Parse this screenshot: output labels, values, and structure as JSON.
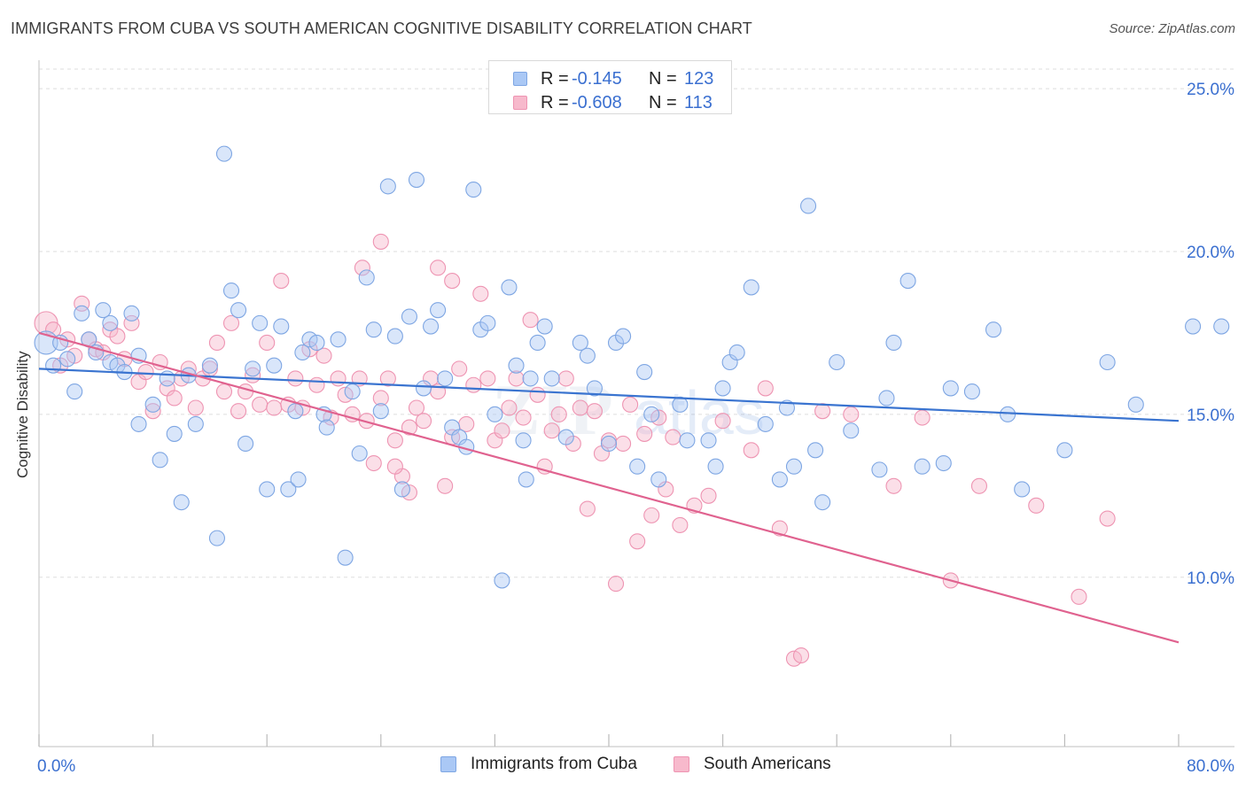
{
  "header": {
    "title": "IMMIGRANTS FROM CUBA VS SOUTH AMERICAN COGNITIVE DISABILITY CORRELATION CHART",
    "source": "Source: ZipAtlas.com"
  },
  "legend_top": {
    "rows": [
      {
        "r_label": "R =",
        "r_value": "-0.145",
        "n_label": "N =",
        "n_value": "123",
        "color": "#aac8f5"
      },
      {
        "r_label": "R =",
        "r_value": "-0.608",
        "n_label": "N =",
        "n_value": "113",
        "color": "#f7b9cc"
      }
    ]
  },
  "legend_bottom": {
    "items": [
      {
        "label": "Immigrants from Cuba",
        "color": "#aac8f5"
      },
      {
        "label": "South Americans",
        "color": "#f7b9cc"
      }
    ]
  },
  "watermark": {
    "zip": "ZIP",
    "atlas": "atlas"
  },
  "colors": {
    "cuba": "#3a74d0",
    "cuba_fill": "#aac8f5",
    "south": "#e0628f",
    "south_fill": "#f7b9cc",
    "axis_label": "#3a6fd0",
    "grid": "#dddddd"
  },
  "chart_data": {
    "type": "scatter",
    "title": "IMMIGRANTS FROM CUBA VS SOUTH AMERICAN COGNITIVE DISABILITY CORRELATION CHART",
    "xlabel": "",
    "ylabel": "Cognitive Disability",
    "xlim": [
      0,
      80
    ],
    "ylim": [
      4.8,
      25.6
    ],
    "x_tick_labels": [
      "0.0%",
      "80.0%"
    ],
    "y_ticks": [
      10,
      15,
      20,
      25
    ],
    "y_tick_labels": [
      "10.0%",
      "15.0%",
      "20.0%",
      "25.0%"
    ],
    "grid": "horizontal dashed",
    "legend_position": "top-center",
    "series": [
      {
        "name": "Immigrants from Cuba",
        "r": -0.145,
        "n": 123,
        "trend": {
          "x": [
            0,
            80
          ],
          "y": [
            16.4,
            14.8
          ]
        },
        "points": [
          [
            0.5,
            17.2
          ],
          [
            1,
            16.5
          ],
          [
            1.5,
            17.2
          ],
          [
            2,
            16.7
          ],
          [
            2.5,
            15.7
          ],
          [
            3,
            18.1
          ],
          [
            3.5,
            17.3
          ],
          [
            4,
            16.9
          ],
          [
            4.5,
            18.2
          ],
          [
            5,
            17.8
          ],
          [
            5,
            16.6
          ],
          [
            5.5,
            16.5
          ],
          [
            6,
            16.3
          ],
          [
            6.5,
            18.1
          ],
          [
            7,
            14.7
          ],
          [
            7,
            16.8
          ],
          [
            8,
            15.3
          ],
          [
            8.5,
            13.6
          ],
          [
            9,
            16.1
          ],
          [
            9.5,
            14.4
          ],
          [
            10,
            12.3
          ],
          [
            10.5,
            16.2
          ],
          [
            11,
            14.7
          ],
          [
            12,
            16.5
          ],
          [
            12.5,
            11.2
          ],
          [
            13,
            23.0
          ],
          [
            13.5,
            18.8
          ],
          [
            14,
            18.2
          ],
          [
            14.5,
            14.1
          ],
          [
            15,
            16.4
          ],
          [
            15.5,
            17.8
          ],
          [
            16,
            12.7
          ],
          [
            16.5,
            16.5
          ],
          [
            17,
            17.7
          ],
          [
            17.5,
            12.7
          ],
          [
            18,
            15.1
          ],
          [
            18.2,
            13.0
          ],
          [
            18.5,
            16.9
          ],
          [
            19,
            17.3
          ],
          [
            19.5,
            17.2
          ],
          [
            20,
            15.0
          ],
          [
            20.2,
            14.6
          ],
          [
            21,
            17.3
          ],
          [
            21.5,
            10.6
          ],
          [
            22,
            15.7
          ],
          [
            22.5,
            13.8
          ],
          [
            23,
            19.2
          ],
          [
            23.5,
            17.6
          ],
          [
            24,
            15.1
          ],
          [
            24.5,
            22.0
          ],
          [
            25,
            17.4
          ],
          [
            25.5,
            12.7
          ],
          [
            26,
            18.0
          ],
          [
            26.5,
            22.2
          ],
          [
            27,
            15.8
          ],
          [
            27.5,
            17.7
          ],
          [
            28,
            18.2
          ],
          [
            28.5,
            16.1
          ],
          [
            29,
            14.6
          ],
          [
            29.5,
            14.3
          ],
          [
            30,
            14.0
          ],
          [
            30.5,
            21.9
          ],
          [
            31,
            17.6
          ],
          [
            31.5,
            17.8
          ],
          [
            32,
            15.0
          ],
          [
            32.5,
            9.9
          ],
          [
            33,
            18.9
          ],
          [
            33.5,
            16.5
          ],
          [
            34,
            14.2
          ],
          [
            34.2,
            13.0
          ],
          [
            34.5,
            16.1
          ],
          [
            35,
            17.2
          ],
          [
            35.5,
            17.7
          ],
          [
            36,
            16.1
          ],
          [
            37,
            14.3
          ],
          [
            38,
            17.2
          ],
          [
            38.5,
            16.8
          ],
          [
            39,
            15.8
          ],
          [
            40,
            14.1
          ],
          [
            40.5,
            17.2
          ],
          [
            41,
            17.4
          ],
          [
            42,
            13.4
          ],
          [
            42.5,
            16.3
          ],
          [
            43,
            15.0
          ],
          [
            43.5,
            13.0
          ],
          [
            45,
            15.3
          ],
          [
            45.5,
            14.2
          ],
          [
            47,
            14.2
          ],
          [
            47.5,
            13.4
          ],
          [
            48,
            15.8
          ],
          [
            48.5,
            16.6
          ],
          [
            49,
            16.9
          ],
          [
            50,
            18.9
          ],
          [
            51,
            14.7
          ],
          [
            52,
            13.0
          ],
          [
            52.5,
            15.2
          ],
          [
            53,
            13.4
          ],
          [
            54,
            21.4
          ],
          [
            54.5,
            13.9
          ],
          [
            55,
            12.3
          ],
          [
            56,
            16.6
          ],
          [
            57,
            14.5
          ],
          [
            59,
            13.3
          ],
          [
            59.5,
            15.5
          ],
          [
            60,
            17.2
          ],
          [
            61,
            19.1
          ],
          [
            62,
            13.4
          ],
          [
            63.5,
            13.5
          ],
          [
            64,
            15.8
          ],
          [
            65.5,
            15.7
          ],
          [
            67,
            17.6
          ],
          [
            68,
            15.0
          ],
          [
            69,
            12.7
          ],
          [
            72,
            13.9
          ],
          [
            75,
            16.6
          ],
          [
            77,
            15.3
          ],
          [
            81,
            17.7
          ],
          [
            83,
            17.7
          ]
        ]
      },
      {
        "name": "South Americans",
        "r": -0.608,
        "n": 113,
        "trend": {
          "x": [
            0,
            80
          ],
          "y": [
            17.5,
            8.0
          ]
        },
        "points": [
          [
            0.5,
            17.8
          ],
          [
            1,
            17.6
          ],
          [
            1.5,
            16.5
          ],
          [
            2,
            17.3
          ],
          [
            2.5,
            16.8
          ],
          [
            3,
            18.4
          ],
          [
            3.5,
            17.3
          ],
          [
            4,
            17.0
          ],
          [
            4.5,
            16.9
          ],
          [
            5,
            17.6
          ],
          [
            5.5,
            17.4
          ],
          [
            6,
            16.7
          ],
          [
            6.5,
            17.8
          ],
          [
            7,
            16.0
          ],
          [
            7.5,
            16.3
          ],
          [
            8,
            15.1
          ],
          [
            8.5,
            16.6
          ],
          [
            9,
            15.8
          ],
          [
            9.5,
            15.5
          ],
          [
            10,
            16.1
          ],
          [
            10.5,
            16.4
          ],
          [
            11,
            15.2
          ],
          [
            11.5,
            16.1
          ],
          [
            12,
            16.4
          ],
          [
            12.5,
            17.2
          ],
          [
            13,
            15.7
          ],
          [
            13.5,
            17.8
          ],
          [
            14,
            15.1
          ],
          [
            14.5,
            15.7
          ],
          [
            15,
            16.2
          ],
          [
            15.5,
            15.3
          ],
          [
            16,
            17.2
          ],
          [
            16.5,
            15.2
          ],
          [
            17,
            19.1
          ],
          [
            17.5,
            15.3
          ],
          [
            18,
            16.1
          ],
          [
            18.5,
            15.2
          ],
          [
            19,
            17.0
          ],
          [
            19.5,
            15.9
          ],
          [
            20,
            16.8
          ],
          [
            20.5,
            14.9
          ],
          [
            21,
            16.1
          ],
          [
            21.5,
            15.6
          ],
          [
            22,
            15.0
          ],
          [
            22.5,
            16.1
          ],
          [
            23,
            14.8
          ],
          [
            23.5,
            13.5
          ],
          [
            24,
            15.5
          ],
          [
            24.5,
            16.1
          ],
          [
            25,
            14.2
          ],
          [
            25.5,
            13.1
          ],
          [
            26,
            14.6
          ],
          [
            26.5,
            15.2
          ],
          [
            27,
            14.8
          ],
          [
            27.5,
            16.1
          ],
          [
            28,
            15.7
          ],
          [
            28.5,
            12.8
          ],
          [
            29,
            14.3
          ],
          [
            29.5,
            16.4
          ],
          [
            30,
            14.7
          ],
          [
            30.5,
            15.9
          ],
          [
            31,
            18.7
          ],
          [
            31.5,
            16.1
          ],
          [
            32,
            14.2
          ],
          [
            32.5,
            14.5
          ],
          [
            33,
            15.2
          ],
          [
            33.5,
            16.1
          ],
          [
            34,
            14.9
          ],
          [
            34.5,
            17.9
          ],
          [
            35,
            15.6
          ],
          [
            35.5,
            13.4
          ],
          [
            36,
            14.5
          ],
          [
            36.5,
            15.0
          ],
          [
            37,
            16.1
          ],
          [
            37.5,
            14.1
          ],
          [
            38,
            15.2
          ],
          [
            38.5,
            12.1
          ],
          [
            39,
            15.1
          ],
          [
            39.5,
            13.8
          ],
          [
            40,
            14.2
          ],
          [
            40.5,
            9.8
          ],
          [
            41,
            14.1
          ],
          [
            41.5,
            15.3
          ],
          [
            42,
            11.1
          ],
          [
            42.5,
            14.4
          ],
          [
            43,
            11.9
          ],
          [
            43.5,
            14.9
          ],
          [
            44,
            12.7
          ],
          [
            44.5,
            14.3
          ],
          [
            45,
            11.6
          ],
          [
            46,
            12.2
          ],
          [
            47,
            12.5
          ],
          [
            48,
            14.8
          ],
          [
            50,
            13.9
          ],
          [
            51,
            15.8
          ],
          [
            52,
            11.5
          ],
          [
            53,
            7.5
          ],
          [
            53.5,
            7.6
          ],
          [
            55,
            15.1
          ],
          [
            57,
            15.0
          ],
          [
            60,
            12.8
          ],
          [
            62,
            14.9
          ],
          [
            64,
            9.9
          ],
          [
            66,
            12.8
          ],
          [
            70,
            12.2
          ],
          [
            73,
            9.4
          ],
          [
            75,
            11.8
          ],
          [
            22.7,
            19.5
          ],
          [
            24,
            20.3
          ],
          [
            25,
            13.4
          ],
          [
            26,
            12.6
          ],
          [
            28,
            19.5
          ],
          [
            29,
            19.1
          ]
        ]
      }
    ]
  }
}
